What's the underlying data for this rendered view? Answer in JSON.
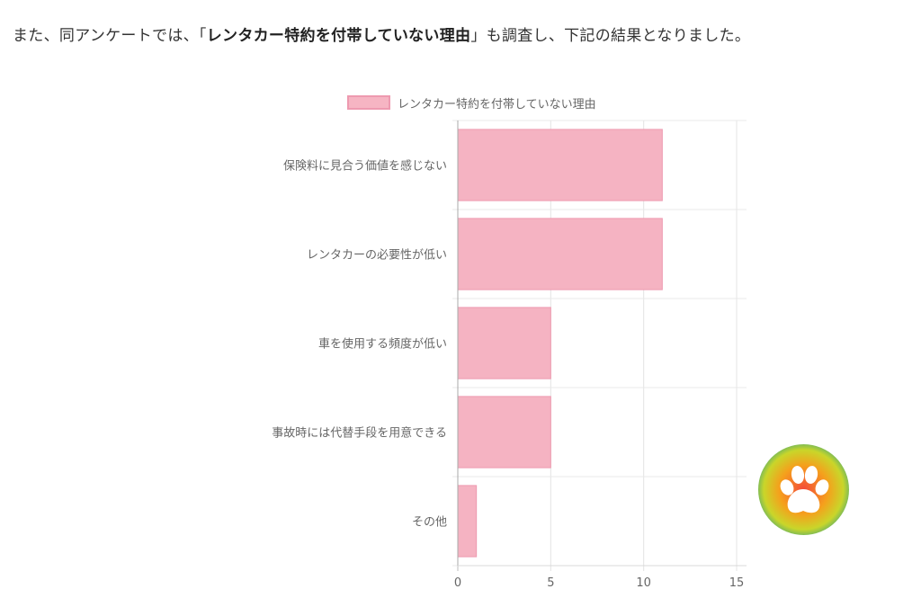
{
  "intro": {
    "before": "また、同アンケートでは、「",
    "bold": "レンタカー特約を付帯していない理由",
    "after": "」も調査し、下記の結果となりました。"
  },
  "chart_data": {
    "type": "bar",
    "orientation": "horizontal",
    "categories": [
      "保険料に見合う価値を感じない",
      "レンタカーの必要性が低い",
      "車を使用する頻度が低い",
      "事故時には代替手段を用意できる",
      "その他"
    ],
    "series": [
      {
        "name": "レンタカー特約を付帯していない理由",
        "values": [
          11,
          11,
          5,
          5,
          1
        ]
      }
    ],
    "xlim": [
      0,
      15
    ],
    "xticks": [
      "0",
      "5",
      "10",
      "15"
    ],
    "grid": true,
    "legend_position": "top",
    "bar_color": "#f5b3c2",
    "bar_border_color": "#ee9ab0",
    "title": "",
    "xlabel": "",
    "ylabel": ""
  },
  "badge": {
    "icon": "paw-icon",
    "colors": [
      "#f44b3a",
      "#f5a01c",
      "#c9d62a",
      "#2f8a7c"
    ]
  }
}
